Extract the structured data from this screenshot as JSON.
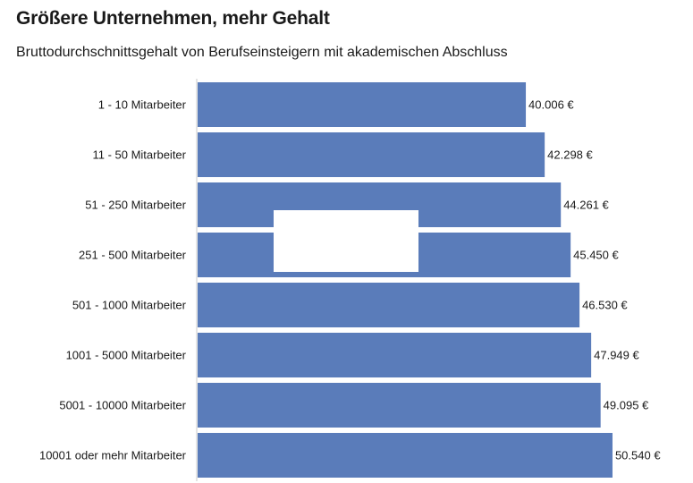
{
  "title": "Größere Unternehmen, mehr Gehalt",
  "subtitle": "Bruttodurchschnittsgehalt von Berufseinsteigern mit akademischen Abschluss",
  "colors": {
    "bar": "#5a7cba",
    "axis": "#c8c8c8"
  },
  "chart_data": {
    "type": "bar",
    "orientation": "horizontal",
    "title": "Größere Unternehmen, mehr Gehalt",
    "subtitle": "Bruttodurchschnittsgehalt von Berufseinsteigern mit akademischen Abschluss",
    "xlabel": "",
    "ylabel": "",
    "categories": [
      "1 - 10 Mitarbeiter",
      "11 - 50 Mitarbeiter",
      "51 - 250 Mitarbeiter",
      "251 - 500 Mitarbeiter",
      "501 - 1000 Mitarbeiter",
      "1001 - 5000 Mitarbeiter",
      "5001 - 10000 Mitarbeiter",
      "10001 oder mehr Mitarbeiter"
    ],
    "values": [
      40006,
      42298,
      44261,
      45450,
      46530,
      47949,
      49095,
      50540
    ],
    "value_labels": [
      "40.006 €",
      "42.298 €",
      "44.261 €",
      "45.450 €",
      "46.530 €",
      "47.949 €",
      "49.095 €",
      "50.540 €"
    ],
    "xlim": [
      0,
      60000
    ],
    "grid": false,
    "legend": "none"
  }
}
